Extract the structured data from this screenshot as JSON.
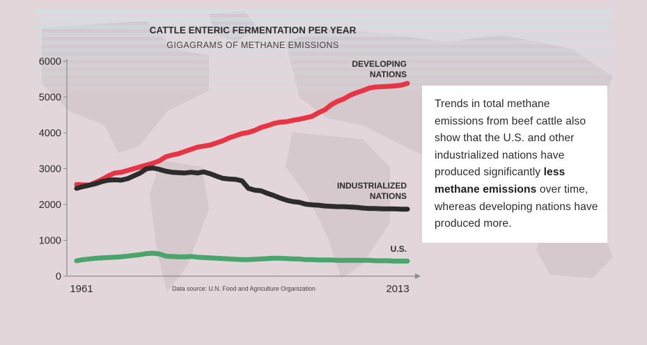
{
  "chart_data": {
    "type": "line",
    "title": "CATTLE ENTERIC FERMENTATION PER YEAR",
    "subtitle": "GIGAGRAMS OF METHANE EMISSIONS",
    "source": "Data source: U.N. Food and Agriculture Organization",
    "xlabel": "",
    "ylabel": "",
    "xlim": [
      1961,
      2013
    ],
    "ylim": [
      0,
      6000
    ],
    "y_ticks": [
      0,
      1000,
      2000,
      3000,
      4000,
      5000,
      6000
    ],
    "x_tick_labels": [
      "1961",
      "2013"
    ],
    "grid": false,
    "series": [
      {
        "name": "DEVELOPING NATIONS",
        "label_lines": [
          "DEVELOPING",
          "NATIONS"
        ],
        "color": "#e83545",
        "x": [
          1961,
          1962,
          1963,
          1964,
          1965,
          1966,
          1967,
          1968,
          1969,
          1970,
          1971,
          1972,
          1973,
          1974,
          1975,
          1976,
          1977,
          1978,
          1979,
          1980,
          1981,
          1982,
          1983,
          1984,
          1985,
          1986,
          1987,
          1988,
          1989,
          1990,
          1991,
          1992,
          1993,
          1994,
          1995,
          1996,
          1997,
          1998,
          1999,
          2000,
          2001,
          2002,
          2003,
          2004,
          2005,
          2006,
          2007,
          2008,
          2009,
          2010,
          2011,
          2012,
          2013
        ],
        "values": [
          2560,
          2550,
          2540,
          2620,
          2700,
          2800,
          2880,
          2900,
          2950,
          3000,
          3050,
          3100,
          3150,
          3220,
          3330,
          3380,
          3420,
          3480,
          3540,
          3600,
          3630,
          3660,
          3720,
          3780,
          3860,
          3920,
          3980,
          4010,
          4070,
          4150,
          4200,
          4260,
          4300,
          4310,
          4350,
          4380,
          4420,
          4460,
          4560,
          4640,
          4780,
          4880,
          4950,
          5050,
          5120,
          5180,
          5250,
          5280,
          5290,
          5300,
          5310,
          5330,
          5380
        ]
      },
      {
        "name": "INDUSTRIALIZED NATIONS",
        "label_lines": [
          "INDUSTRIALIZED",
          "NATIONS"
        ],
        "color": "#2c2c2c",
        "x": [
          1961,
          1962,
          1963,
          1964,
          1965,
          1966,
          1967,
          1968,
          1969,
          1970,
          1971,
          1972,
          1973,
          1974,
          1975,
          1976,
          1977,
          1978,
          1979,
          1980,
          1981,
          1982,
          1983,
          1984,
          1985,
          1986,
          1987,
          1988,
          1989,
          1990,
          1991,
          1992,
          1993,
          1994,
          1995,
          1996,
          1997,
          1998,
          1999,
          2000,
          2001,
          2002,
          2003,
          2004,
          2005,
          2006,
          2007,
          2008,
          2009,
          2010,
          2011,
          2012,
          2013
        ],
        "values": [
          2450,
          2500,
          2540,
          2580,
          2640,
          2680,
          2690,
          2680,
          2720,
          2800,
          2880,
          3000,
          3020,
          2980,
          2930,
          2900,
          2890,
          2880,
          2900,
          2880,
          2910,
          2860,
          2790,
          2730,
          2710,
          2700,
          2660,
          2450,
          2400,
          2380,
          2310,
          2250,
          2180,
          2120,
          2080,
          2060,
          2010,
          1990,
          1980,
          1960,
          1950,
          1940,
          1940,
          1930,
          1920,
          1900,
          1890,
          1890,
          1880,
          1880,
          1880,
          1870,
          1870
        ]
      },
      {
        "name": "U.S.",
        "label_lines": [
          "U.S."
        ],
        "color": "#49a56c",
        "x": [
          1961,
          1962,
          1963,
          1964,
          1965,
          1966,
          1967,
          1968,
          1969,
          1970,
          1971,
          1972,
          1973,
          1974,
          1975,
          1976,
          1977,
          1978,
          1979,
          1980,
          1981,
          1982,
          1983,
          1984,
          1985,
          1986,
          1987,
          1988,
          1989,
          1990,
          1991,
          1992,
          1993,
          1994,
          1995,
          1996,
          1997,
          1998,
          1999,
          2000,
          2001,
          2002,
          2003,
          2004,
          2005,
          2006,
          2007,
          2008,
          2009,
          2010,
          2011,
          2012,
          2013
        ],
        "values": [
          430,
          460,
          480,
          500,
          510,
          520,
          530,
          540,
          560,
          580,
          600,
          630,
          640,
          620,
          560,
          550,
          540,
          540,
          550,
          530,
          520,
          510,
          500,
          490,
          480,
          470,
          460,
          460,
          470,
          480,
          490,
          500,
          500,
          490,
          480,
          480,
          460,
          460,
          450,
          450,
          450,
          440,
          440,
          440,
          440,
          440,
          440,
          430,
          430,
          430,
          420,
          420,
          420
        ]
      }
    ]
  },
  "colors": {
    "background": "#e3d6da",
    "stripe": "#c9e2ea",
    "axis": "#8a8a8a",
    "text": "#2b2b2b"
  },
  "info_box": {
    "text_before": "Trends in total methane emissions from beef cattle also show that the U.S. and other industrialized nations have produced significantly",
    "text_bold": "less methane emissions",
    "text_after": "over time, whereas developing nations have produced more."
  }
}
